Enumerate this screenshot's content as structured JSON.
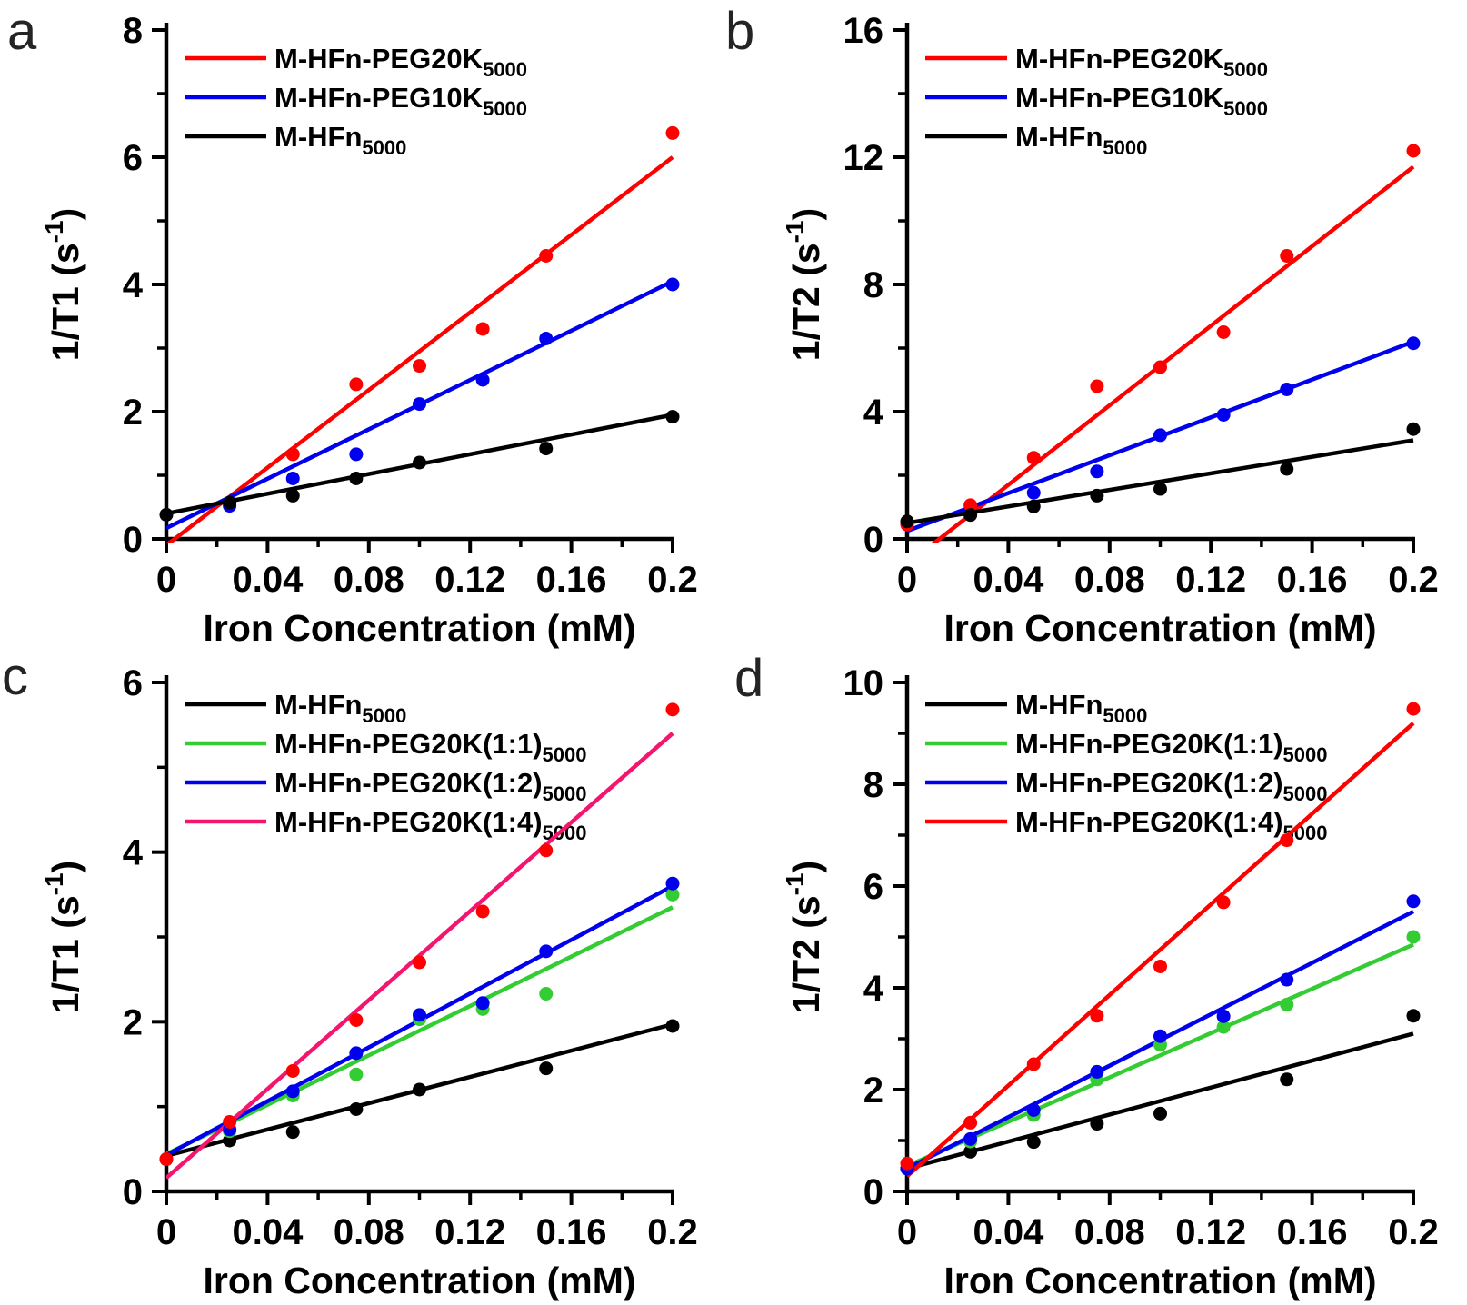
{
  "figure": {
    "background": "#ffffff"
  },
  "chart_data": [
    {
      "panel": "a",
      "type": "scatter",
      "xlabel": "Iron Concentration (mM)",
      "ylabel_parts": {
        "pre": "1/T1 (s",
        "sup": "-1",
        "post": ")"
      },
      "xlim": [
        0,
        0.2
      ],
      "ylim": [
        0,
        8
      ],
      "grid": false,
      "legend_position": "top-left",
      "x_ticks": {
        "major": [
          0,
          0.04,
          0.08,
          0.12,
          0.16,
          0.2
        ],
        "labels": [
          "0",
          "0.04",
          "0.08",
          "0.12",
          "0.16",
          "0.2"
        ],
        "minor": [
          0.02,
          0.06,
          0.1,
          0.14,
          0.18
        ]
      },
      "y_ticks": {
        "major": [
          0,
          2,
          4,
          6,
          8
        ],
        "labels": [
          "0",
          "2",
          "4",
          "6",
          "8"
        ],
        "minor": [
          1,
          3,
          5,
          7
        ]
      },
      "series": [
        {
          "label": "M-HFn-PEG20K",
          "label_sub": "5000",
          "line_color": "#ff0000",
          "dot_color": "#ff0000",
          "points": [
            [
              0.05,
              1.33
            ],
            [
              0.075,
              2.43
            ],
            [
              0.1,
              2.72
            ],
            [
              0.125,
              3.3
            ],
            [
              0.15,
              4.45
            ],
            [
              0.2,
              6.38
            ]
          ],
          "fit": [
            [
              0,
              -0.1
            ],
            [
              0.2,
              6.0
            ]
          ]
        },
        {
          "label": "M-HFn-PEG10K",
          "label_sub": "5000",
          "line_color": "#0000ee",
          "dot_color": "#0000ee",
          "points": [
            [
              0.025,
              0.52
            ],
            [
              0.05,
              0.95
            ],
            [
              0.075,
              1.33
            ],
            [
              0.1,
              2.12
            ],
            [
              0.125,
              2.5
            ],
            [
              0.15,
              3.15
            ],
            [
              0.2,
              4.0
            ]
          ],
          "fit": [
            [
              0,
              0.17
            ],
            [
              0.2,
              4.05
            ]
          ]
        },
        {
          "label": "M-HFn",
          "label_sub": "5000",
          "line_color": "#000000",
          "dot_color": "#000000",
          "points": [
            [
              0,
              0.38
            ],
            [
              0.025,
              0.57
            ],
            [
              0.05,
              0.68
            ],
            [
              0.075,
              0.95
            ],
            [
              0.1,
              1.2
            ],
            [
              0.15,
              1.42
            ],
            [
              0.2,
              1.92
            ]
          ],
          "fit": [
            [
              0,
              0.4
            ],
            [
              0.2,
              1.95
            ]
          ]
        }
      ]
    },
    {
      "panel": "b",
      "type": "scatter",
      "xlabel": "Iron Concentration (mM)",
      "ylabel_parts": {
        "pre": "1/T2 (s",
        "sup": "-1",
        "post": ")"
      },
      "xlim": [
        0,
        0.2
      ],
      "ylim": [
        0,
        16
      ],
      "grid": false,
      "legend_position": "top-left",
      "x_ticks": {
        "major": [
          0,
          0.04,
          0.08,
          0.12,
          0.16,
          0.2
        ],
        "labels": [
          "0",
          "0.04",
          "0.08",
          "0.12",
          "0.16",
          "0.2"
        ],
        "minor": [
          0.02,
          0.06,
          0.1,
          0.14,
          0.18
        ]
      },
      "y_ticks": {
        "major": [
          0,
          4,
          8,
          12,
          16
        ],
        "labels": [
          "0",
          "4",
          "8",
          "12",
          "16"
        ],
        "minor": [
          2,
          6,
          10,
          14
        ]
      },
      "series": [
        {
          "label": "M-HFn-PEG20K",
          "label_sub": "5000",
          "line_color": "#ff0000",
          "dot_color": "#ff0000",
          "points": [
            [
              0,
              0.45
            ],
            [
              0.025,
              1.06
            ],
            [
              0.05,
              2.55
            ],
            [
              0.075,
              4.8
            ],
            [
              0.1,
              5.4
            ],
            [
              0.125,
              6.5
            ],
            [
              0.15,
              8.9
            ],
            [
              0.2,
              12.2
            ]
          ],
          "fit": [
            [
              0,
              -0.8
            ],
            [
              0.2,
              11.7
            ]
          ]
        },
        {
          "label": "M-HFn-PEG10K",
          "label_sub": "5000",
          "line_color": "#0000ee",
          "dot_color": "#0000ee",
          "points": [
            [
              0.05,
              1.45
            ],
            [
              0.075,
              2.12
            ],
            [
              0.1,
              3.26
            ],
            [
              0.125,
              3.9
            ],
            [
              0.15,
              4.7
            ],
            [
              0.2,
              6.15
            ]
          ],
          "fit": [
            [
              0,
              0.25
            ],
            [
              0.2,
              6.2
            ]
          ]
        },
        {
          "label": "M-HFn",
          "label_sub": "5000",
          "line_color": "#000000",
          "dot_color": "#000000",
          "points": [
            [
              0,
              0.55
            ],
            [
              0.025,
              0.75
            ],
            [
              0.05,
              1.02
            ],
            [
              0.075,
              1.36
            ],
            [
              0.1,
              1.57
            ],
            [
              0.15,
              2.2
            ],
            [
              0.2,
              3.45
            ]
          ],
          "fit": [
            [
              0,
              0.5
            ],
            [
              0.2,
              3.1
            ]
          ]
        }
      ]
    },
    {
      "panel": "c",
      "type": "scatter",
      "xlabel": "Iron Concentration (mM)",
      "ylabel_parts": {
        "pre": "1/T1 (s",
        "sup": "-1",
        "post": ")"
      },
      "xlim": [
        0,
        0.2
      ],
      "ylim": [
        0,
        6
      ],
      "grid": false,
      "legend_position": "top-left",
      "x_ticks": {
        "major": [
          0,
          0.04,
          0.08,
          0.12,
          0.16,
          0.2
        ],
        "labels": [
          "0",
          "0.04",
          "0.08",
          "0.12",
          "0.16",
          "0.2"
        ],
        "minor": [
          0.02,
          0.06,
          0.1,
          0.14,
          0.18
        ]
      },
      "y_ticks": {
        "major": [
          0,
          2,
          4,
          6
        ],
        "labels": [
          "0",
          "2",
          "4",
          "6"
        ],
        "minor": [
          1,
          3,
          5
        ]
      },
      "series": [
        {
          "label": "M-HFn",
          "label_sub": "5000",
          "line_color": "#000000",
          "dot_color": "#000000",
          "points": [
            [
              0,
              0.38
            ],
            [
              0.025,
              0.6
            ],
            [
              0.05,
              0.7
            ],
            [
              0.075,
              0.97
            ],
            [
              0.1,
              1.2
            ],
            [
              0.15,
              1.45
            ],
            [
              0.2,
              1.95
            ]
          ],
          "fit": [
            [
              0,
              0.42
            ],
            [
              0.2,
              1.97
            ]
          ]
        },
        {
          "label": "M-HFn-PEG20K(1:1)",
          "label_sub": "5000",
          "line_color": "#33cc33",
          "dot_color": "#33cc33",
          "points": [
            [
              0.025,
              0.71
            ],
            [
              0.05,
              1.13
            ],
            [
              0.075,
              1.38
            ],
            [
              0.1,
              2.03
            ],
            [
              0.125,
              2.15
            ],
            [
              0.15,
              2.33
            ],
            [
              0.2,
              3.5
            ]
          ],
          "fit": [
            [
              0,
              0.44
            ],
            [
              0.2,
              3.35
            ]
          ]
        },
        {
          "label": "M-HFn-PEG20K(1:2)",
          "label_sub": "5000",
          "line_color": "#0000ee",
          "dot_color": "#0000ee",
          "points": [
            [
              0.025,
              0.73
            ],
            [
              0.05,
              1.18
            ],
            [
              0.075,
              1.63
            ],
            [
              0.1,
              2.08
            ],
            [
              0.125,
              2.22
            ],
            [
              0.15,
              2.83
            ],
            [
              0.2,
              3.63
            ]
          ],
          "fit": [
            [
              0,
              0.43
            ],
            [
              0.2,
              3.6
            ]
          ]
        },
        {
          "label": "M-HFn-PEG20K(1:4)",
          "label_sub": "5000",
          "line_color": "#f3156e",
          "dot_color": "#ff0000",
          "points": [
            [
              0,
              0.38
            ],
            [
              0.025,
              0.82
            ],
            [
              0.05,
              1.42
            ],
            [
              0.075,
              2.02
            ],
            [
              0.1,
              2.7
            ],
            [
              0.125,
              3.3
            ],
            [
              0.15,
              4.02
            ],
            [
              0.2,
              5.68
            ]
          ],
          "fit": [
            [
              0,
              0.16
            ],
            [
              0.2,
              5.4
            ]
          ]
        }
      ]
    },
    {
      "panel": "d",
      "type": "scatter",
      "xlabel": "Iron Concentration (mM)",
      "ylabel_parts": {
        "pre": "1/T2 (s",
        "sup": "-1",
        "post": ")"
      },
      "xlim": [
        0,
        0.2
      ],
      "ylim": [
        0,
        10
      ],
      "grid": false,
      "legend_position": "top-left",
      "x_ticks": {
        "major": [
          0,
          0.04,
          0.08,
          0.12,
          0.16,
          0.2
        ],
        "labels": [
          "0",
          "0.04",
          "0.08",
          "0.12",
          "0.16",
          "0.2"
        ],
        "minor": [
          0.02,
          0.06,
          0.1,
          0.14,
          0.18
        ]
      },
      "y_ticks": {
        "major": [
          0,
          2,
          4,
          6,
          8,
          10
        ],
        "labels": [
          "0",
          "2",
          "4",
          "6",
          "8",
          "10"
        ],
        "minor": [
          1,
          3,
          5,
          7,
          9
        ]
      },
      "series": [
        {
          "label": "M-HFn",
          "label_sub": "5000",
          "line_color": "#000000",
          "dot_color": "#000000",
          "points": [
            [
              0,
              0.45
            ],
            [
              0.025,
              0.78
            ],
            [
              0.05,
              0.97
            ],
            [
              0.075,
              1.33
            ],
            [
              0.1,
              1.53
            ],
            [
              0.15,
              2.2
            ],
            [
              0.2,
              3.45
            ]
          ],
          "fit": [
            [
              0,
              0.45
            ],
            [
              0.2,
              3.1
            ]
          ]
        },
        {
          "label": "M-HFn-PEG20K(1:1)",
          "label_sub": "5000",
          "line_color": "#33cc33",
          "dot_color": "#33cc33",
          "points": [
            [
              0.025,
              0.98
            ],
            [
              0.05,
              1.5
            ],
            [
              0.075,
              2.2
            ],
            [
              0.1,
              2.88
            ],
            [
              0.125,
              3.23
            ],
            [
              0.15,
              3.67
            ],
            [
              0.2,
              5.0
            ]
          ],
          "fit": [
            [
              0,
              0.5
            ],
            [
              0.2,
              4.85
            ]
          ]
        },
        {
          "label": "M-HFn-PEG20K(1:2)",
          "label_sub": "5000",
          "line_color": "#0000ee",
          "dot_color": "#0000ee",
          "points": [
            [
              0,
              0.45
            ],
            [
              0.025,
              1.03
            ],
            [
              0.05,
              1.6
            ],
            [
              0.075,
              2.35
            ],
            [
              0.1,
              3.05
            ],
            [
              0.125,
              3.44
            ],
            [
              0.15,
              4.16
            ],
            [
              0.2,
              5.7
            ]
          ],
          "fit": [
            [
              0,
              0.45
            ],
            [
              0.2,
              5.5
            ]
          ]
        },
        {
          "label": "M-HFn-PEG20K(1:4)",
          "label_sub": "5000",
          "line_color": "#ff0000",
          "dot_color": "#ff0000",
          "points": [
            [
              0,
              0.55
            ],
            [
              0.025,
              1.35
            ],
            [
              0.05,
              2.5
            ],
            [
              0.075,
              3.45
            ],
            [
              0.1,
              4.42
            ],
            [
              0.125,
              5.68
            ],
            [
              0.15,
              6.9
            ],
            [
              0.2,
              9.48
            ]
          ],
          "fit": [
            [
              0,
              0.3
            ],
            [
              0.2,
              9.2
            ]
          ]
        }
      ]
    }
  ]
}
